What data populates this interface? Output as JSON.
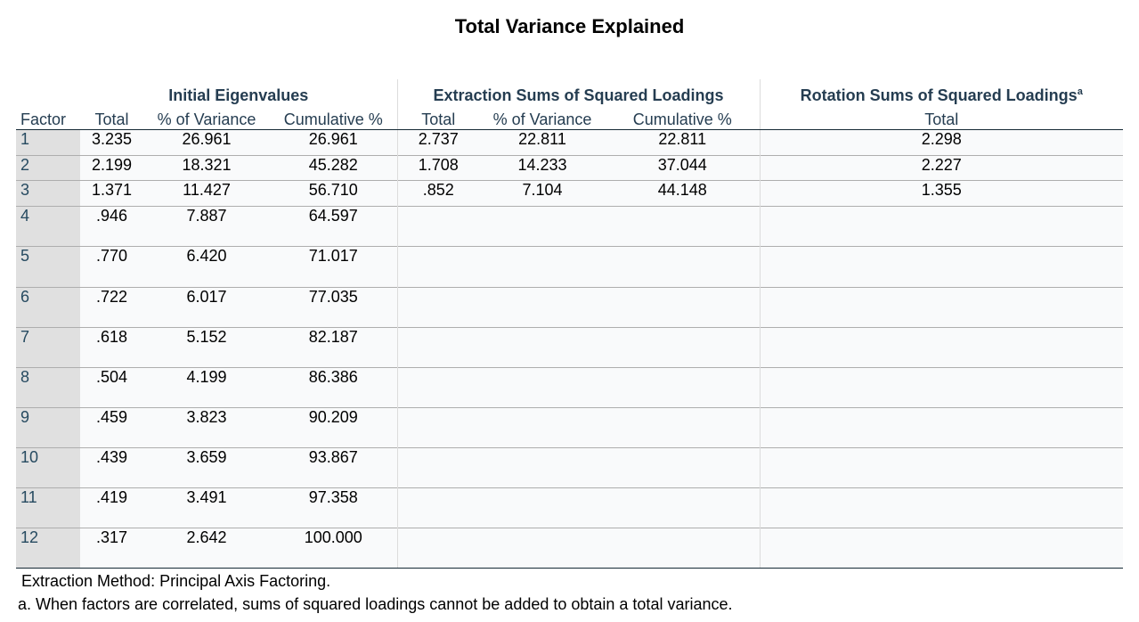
{
  "title": "Total Variance Explained",
  "groups": {
    "initial": "Initial Eigenvalues",
    "extraction": "Extraction Sums of Squared Loadings",
    "rotation": "Rotation Sums of Squared Loadings",
    "rotation_sup": "a"
  },
  "columns": {
    "factor": "Factor",
    "init_total": "Total",
    "init_pct": "% of Variance",
    "init_cum": "Cumulative %",
    "ext_total": "Total",
    "ext_pct": "% of Variance",
    "ext_cum": "Cumulative %",
    "rot_total": "Total"
  },
  "rows": [
    {
      "factor": "1",
      "init_total": "3.235",
      "init_pct": "26.961",
      "init_cum": "26.961",
      "ext_total": "2.737",
      "ext_pct": "22.811",
      "ext_cum": "22.811",
      "rot_total": "2.298"
    },
    {
      "factor": "2",
      "init_total": "2.199",
      "init_pct": "18.321",
      "init_cum": "45.282",
      "ext_total": "1.708",
      "ext_pct": "14.233",
      "ext_cum": "37.044",
      "rot_total": "2.227"
    },
    {
      "factor": "3",
      "init_total": "1.371",
      "init_pct": "11.427",
      "init_cum": "56.710",
      "ext_total": ".852",
      "ext_pct": "7.104",
      "ext_cum": "44.148",
      "rot_total": "1.355"
    },
    {
      "factor": "4",
      "init_total": ".946",
      "init_pct": "7.887",
      "init_cum": "64.597",
      "ext_total": "",
      "ext_pct": "",
      "ext_cum": "",
      "rot_total": ""
    },
    {
      "factor": "5",
      "init_total": ".770",
      "init_pct": "6.420",
      "init_cum": "71.017",
      "ext_total": "",
      "ext_pct": "",
      "ext_cum": "",
      "rot_total": ""
    },
    {
      "factor": "6",
      "init_total": ".722",
      "init_pct": "6.017",
      "init_cum": "77.035",
      "ext_total": "",
      "ext_pct": "",
      "ext_cum": "",
      "rot_total": ""
    },
    {
      "factor": "7",
      "init_total": ".618",
      "init_pct": "5.152",
      "init_cum": "82.187",
      "ext_total": "",
      "ext_pct": "",
      "ext_cum": "",
      "rot_total": ""
    },
    {
      "factor": "8",
      "init_total": ".504",
      "init_pct": "4.199",
      "init_cum": "86.386",
      "ext_total": "",
      "ext_pct": "",
      "ext_cum": "",
      "rot_total": ""
    },
    {
      "factor": "9",
      "init_total": ".459",
      "init_pct": "3.823",
      "init_cum": "90.209",
      "ext_total": "",
      "ext_pct": "",
      "ext_cum": "",
      "rot_total": ""
    },
    {
      "factor": "10",
      "init_total": ".439",
      "init_pct": "3.659",
      "init_cum": "93.867",
      "ext_total": "",
      "ext_pct": "",
      "ext_cum": "",
      "rot_total": ""
    },
    {
      "factor": "11",
      "init_total": ".419",
      "init_pct": "3.491",
      "init_cum": "97.358",
      "ext_total": "",
      "ext_pct": "",
      "ext_cum": "",
      "rot_total": ""
    },
    {
      "factor": "12",
      "init_total": ".317",
      "init_pct": "2.642",
      "init_cum": "100.000",
      "ext_total": "",
      "ext_pct": "",
      "ext_cum": "",
      "rot_total": ""
    }
  ],
  "footnotes": {
    "method": "Extraction Method: Principal Axis Factoring.",
    "note_a": "a. When factors are correlated, sums of squared loadings cannot be added to obtain a total variance."
  },
  "colors": {
    "header_text": "#253d51",
    "row_header_bg": "#e0e0e0",
    "cell_bg": "#f9fafb",
    "rule": "#152935"
  }
}
